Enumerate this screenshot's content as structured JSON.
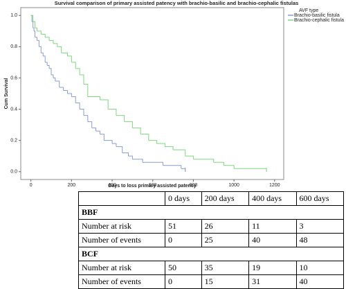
{
  "chart_data": {
    "type": "step",
    "title": "Survival comparison of primary assisted patency with brachio-basilic and brachio-cephalic fistulas",
    "x_label": "Days to loss primary assisted patency",
    "y_label": "Cum Survival",
    "legend_title": "AVF type",
    "xlim": [
      -50,
      1245
    ],
    "ylim": [
      -0.05,
      1.05
    ],
    "xticks": [
      0,
      200,
      400,
      600,
      800,
      1000,
      1200
    ],
    "yticks": [
      {
        "value": 0,
        "label": "0.0"
      },
      0.2,
      0.4,
      0.6,
      0.8,
      {
        "value": 1,
        "label": "1.0"
      }
    ],
    "series": [
      {
        "name": "Brachio-basilic fistula",
        "color": "#8b9bd3",
        "x": [
          0,
          5,
          10,
          15,
          20,
          30,
          40,
          50,
          60,
          70,
          80,
          90,
          100,
          110,
          120,
          140,
          160,
          180,
          200,
          220,
          240,
          260,
          280,
          300,
          320,
          340,
          360,
          400,
          420,
          450,
          480,
          500,
          550,
          650,
          740,
          760
        ],
        "values": [
          1.0,
          0.96,
          0.92,
          0.9,
          0.86,
          0.84,
          0.8,
          0.76,
          0.74,
          0.7,
          0.68,
          0.66,
          0.62,
          0.6,
          0.58,
          0.54,
          0.52,
          0.5,
          0.48,
          0.44,
          0.4,
          0.36,
          0.32,
          0.28,
          0.26,
          0.24,
          0.2,
          0.18,
          0.16,
          0.12,
          0.1,
          0.08,
          0.06,
          0.04,
          0.02,
          0.0
        ]
      },
      {
        "name": "Brachio-cephalic fistula",
        "color": "#7dd87d",
        "x": [
          0,
          10,
          20,
          30,
          50,
          70,
          90,
          110,
          130,
          150,
          180,
          200,
          220,
          240,
          260,
          280,
          340,
          380,
          420,
          460,
          500,
          540,
          580,
          620,
          660,
          700,
          760,
          800,
          900,
          950,
          1000,
          1160
        ],
        "values": [
          1.0,
          0.96,
          0.92,
          0.9,
          0.88,
          0.86,
          0.84,
          0.82,
          0.8,
          0.76,
          0.74,
          0.7,
          0.66,
          0.62,
          0.56,
          0.48,
          0.46,
          0.4,
          0.36,
          0.32,
          0.28,
          0.24,
          0.2,
          0.18,
          0.16,
          0.14,
          0.1,
          0.08,
          0.06,
          0.04,
          0.02,
          0.0
        ]
      }
    ]
  },
  "table": {
    "columns": [
      "0 days",
      "200 days",
      "400 days",
      "600 days"
    ],
    "groups": [
      {
        "name": "BBF",
        "rows": [
          {
            "label": "Number at risk",
            "values": [
              51,
              26,
              11,
              3
            ]
          },
          {
            "label": "Number of events",
            "values": [
              0,
              25,
              40,
              48
            ]
          }
        ]
      },
      {
        "name": "BCF",
        "rows": [
          {
            "label": "Number at risk",
            "values": [
              50,
              35,
              19,
              10
            ]
          },
          {
            "label": "Number of events",
            "values": [
              0,
              15,
              31,
              40
            ]
          }
        ]
      }
    ]
  }
}
